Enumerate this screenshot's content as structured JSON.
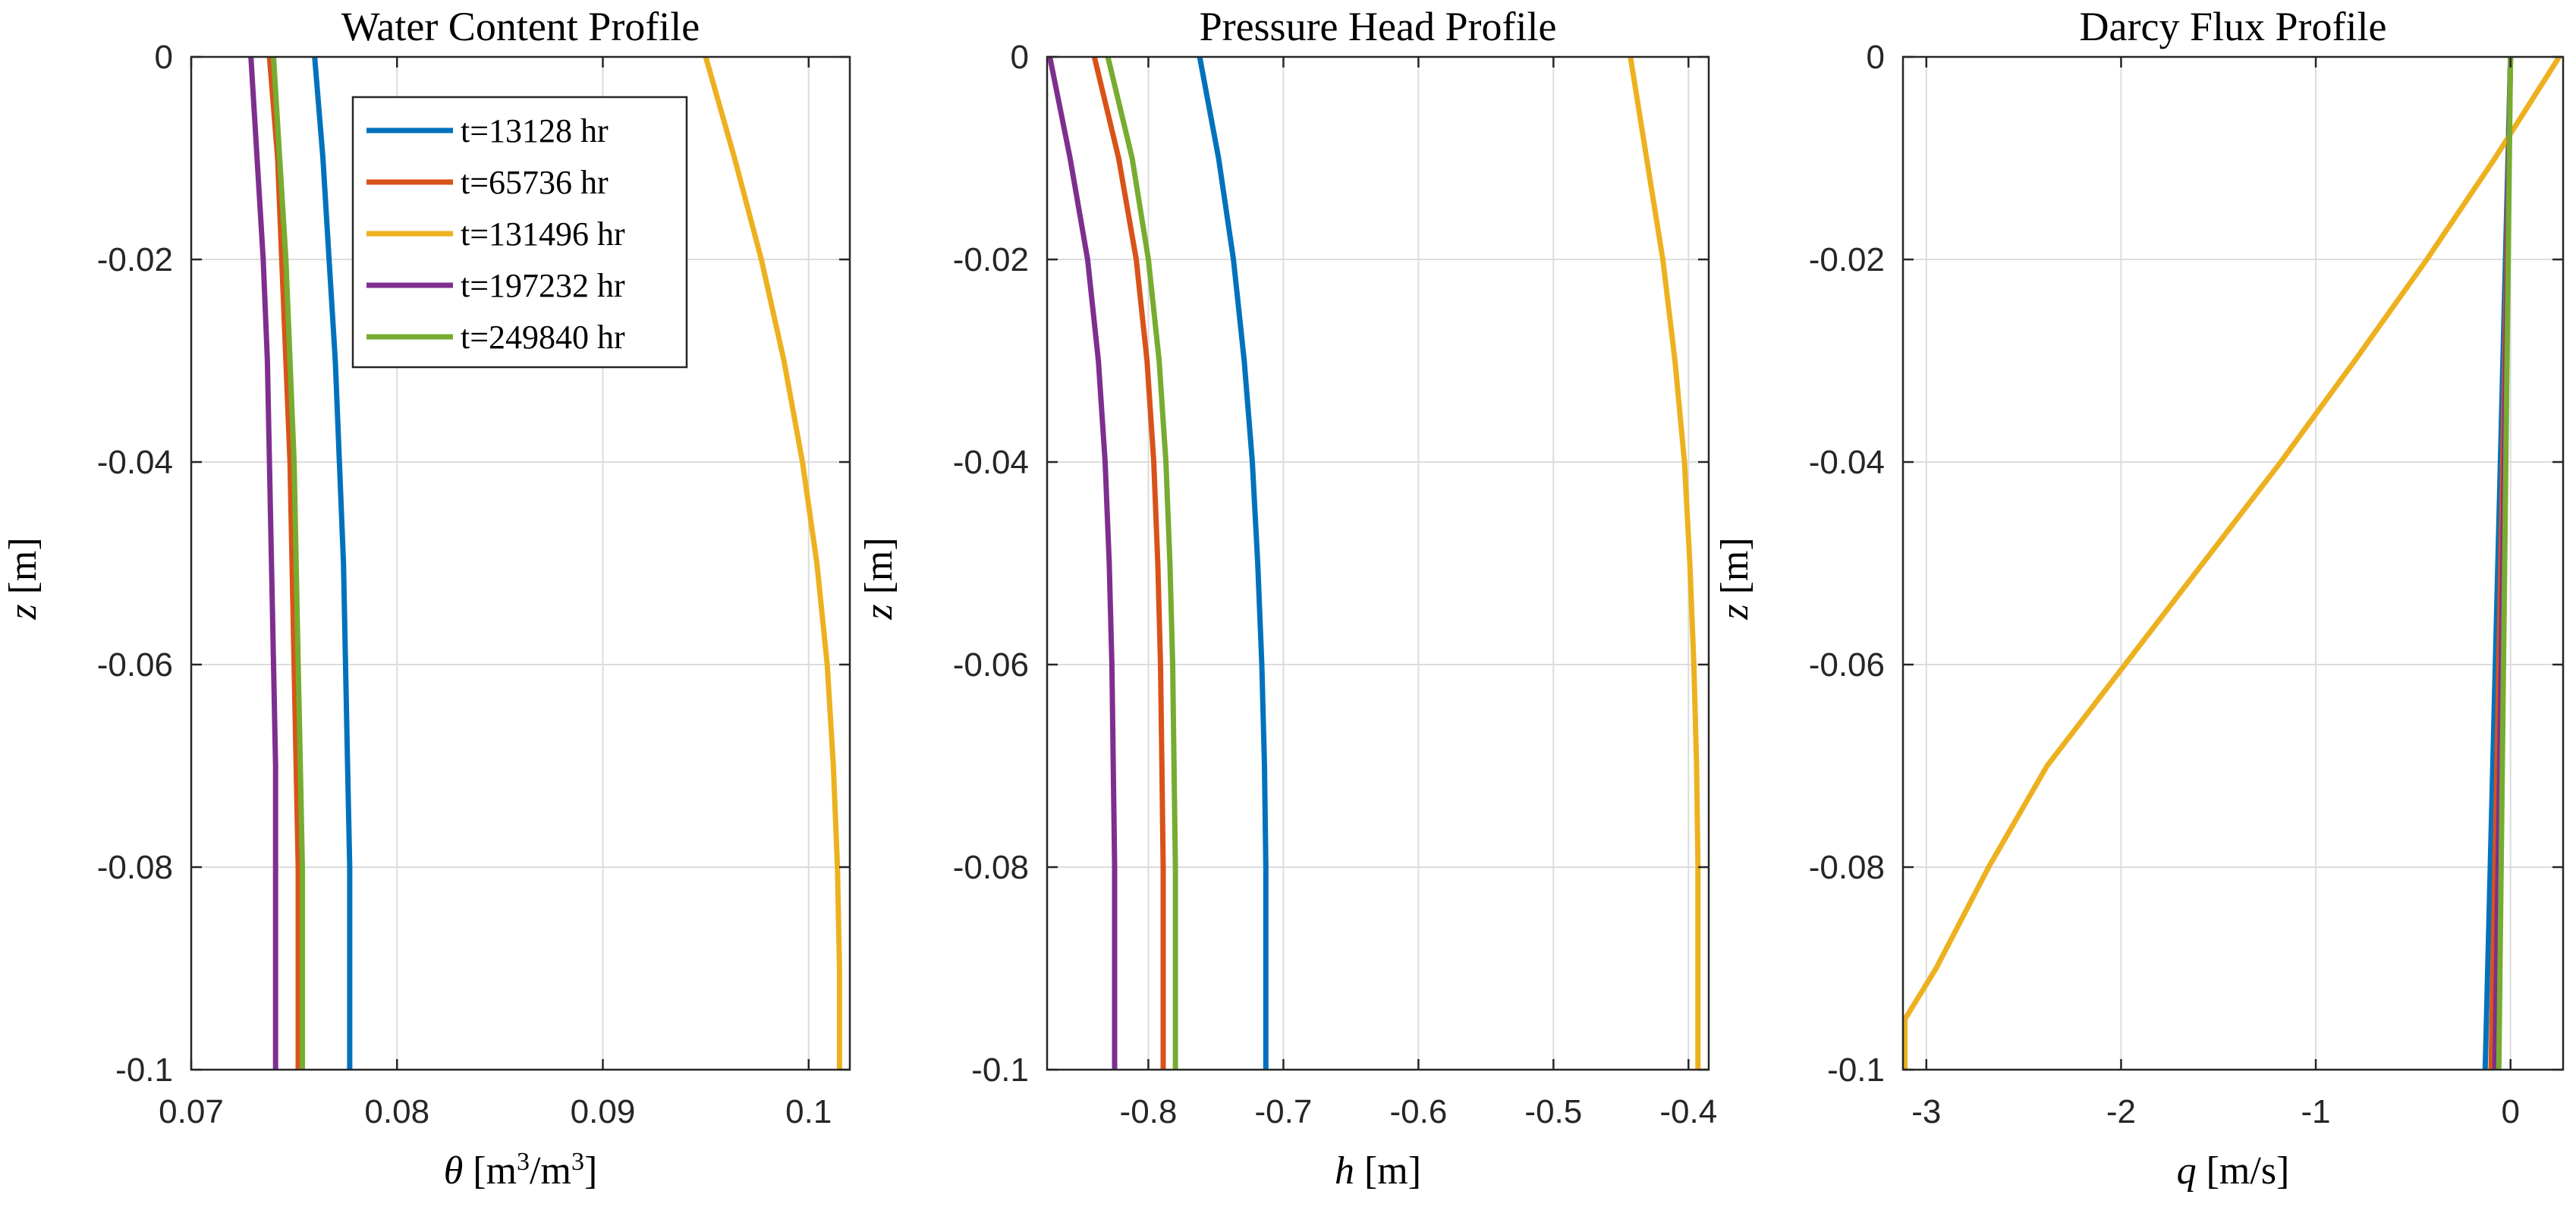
{
  "chart_data": [
    {
      "type": "line",
      "title": "Water Content Profile",
      "xlabel_symbol": "θ",
      "xlabel_units": "[m",
      "xlabel_units_sup1": "3",
      "xlabel_units_mid": "/m",
      "xlabel_units_sup2": "3",
      "xlabel_units_end": "]",
      "ylabel_symbol": "z",
      "ylabel_units": "[m]",
      "xlim": [
        0.07,
        0.102
      ],
      "ylim": [
        -0.1,
        0
      ],
      "xticks": [
        0.07,
        0.08,
        0.09,
        0.1
      ],
      "xtick_labels": [
        "0.07",
        "0.08",
        "0.09",
        "0.1"
      ],
      "yticks": [
        0,
        -0.02,
        -0.04,
        -0.06,
        -0.08,
        -0.1
      ],
      "ytick_labels": [
        "0",
        "-0.02",
        "-0.04",
        "-0.06",
        "-0.08",
        "-0.1"
      ],
      "grid": true,
      "legend_position": "top-center",
      "series": [
        {
          "name": "t=13128 hr",
          "color": "#0072BD",
          "z": [
            0,
            -0.01,
            -0.02,
            -0.03,
            -0.04,
            -0.05,
            -0.06,
            -0.07,
            -0.08,
            -0.09,
            -0.1
          ],
          "values": [
            0.076,
            0.0764,
            0.0767,
            0.077,
            0.0772,
            0.0774,
            0.0775,
            0.0776,
            0.0777,
            0.0777,
            0.0777
          ]
        },
        {
          "name": "t=65736 hr",
          "color": "#D95319",
          "z": [
            0,
            -0.01,
            -0.02,
            -0.03,
            -0.04,
            -0.05,
            -0.06,
            -0.07,
            -0.08,
            -0.09,
            -0.1
          ],
          "values": [
            0.0738,
            0.0742,
            0.0744,
            0.0746,
            0.0748,
            0.0749,
            0.075,
            0.0751,
            0.0752,
            0.0752,
            0.0752
          ]
        },
        {
          "name": "t=131496 hr",
          "color": "#EDB120",
          "z": [
            0,
            -0.01,
            -0.02,
            -0.03,
            -0.04,
            -0.05,
            -0.06,
            -0.07,
            -0.08,
            -0.09,
            -0.1
          ],
          "values": [
            0.095,
            0.0964,
            0.0977,
            0.0988,
            0.0997,
            0.1004,
            0.1009,
            0.1012,
            0.1014,
            0.1015,
            0.1015
          ]
        },
        {
          "name": "t=197232 hr",
          "color": "#7E2F8E",
          "z": [
            0,
            -0.01,
            -0.02,
            -0.03,
            -0.04,
            -0.05,
            -0.06,
            -0.07,
            -0.08,
            -0.09,
            -0.1
          ],
          "values": [
            0.0729,
            0.0732,
            0.0735,
            0.0737,
            0.0738,
            0.0739,
            0.074,
            0.0741,
            0.0741,
            0.0741,
            0.0741
          ]
        },
        {
          "name": "t=249840 hr",
          "color": "#77AC30",
          "z": [
            0,
            -0.01,
            -0.02,
            -0.03,
            -0.04,
            -0.05,
            -0.06,
            -0.07,
            -0.08,
            -0.09,
            -0.1
          ],
          "values": [
            0.074,
            0.0743,
            0.0746,
            0.0748,
            0.075,
            0.0751,
            0.0752,
            0.0753,
            0.0754,
            0.0754,
            0.0754
          ]
        }
      ]
    },
    {
      "type": "line",
      "title": "Pressure Head Profile",
      "xlabel_symbol": "h",
      "xlabel_units": "[m]",
      "ylabel_symbol": "z",
      "ylabel_units": "[m]",
      "xlim": [
        -0.875,
        -0.385
      ],
      "ylim": [
        -0.1,
        0
      ],
      "xticks": [
        -0.8,
        -0.7,
        -0.6,
        -0.5,
        -0.4
      ],
      "xtick_labels": [
        "-0.8",
        "-0.7",
        "-0.6",
        "-0.5",
        "-0.4"
      ],
      "yticks": [
        0,
        -0.02,
        -0.04,
        -0.06,
        -0.08,
        -0.1
      ],
      "ytick_labels": [
        "0",
        "-0.02",
        "-0.04",
        "-0.06",
        "-0.08",
        "-0.1"
      ],
      "grid": true,
      "series": [
        {
          "name": "t=13128 hr",
          "color": "#0072BD",
          "z": [
            0,
            -0.01,
            -0.02,
            -0.03,
            -0.04,
            -0.05,
            -0.06,
            -0.07,
            -0.08,
            -0.09,
            -0.1
          ],
          "values": [
            -0.762,
            -0.748,
            -0.737,
            -0.729,
            -0.723,
            -0.719,
            -0.716,
            -0.714,
            -0.713,
            -0.713,
            -0.713
          ]
        },
        {
          "name": "t=65736 hr",
          "color": "#D95319",
          "z": [
            0,
            -0.01,
            -0.02,
            -0.03,
            -0.04,
            -0.05,
            -0.06,
            -0.07,
            -0.08,
            -0.09,
            -0.1
          ],
          "values": [
            -0.84,
            -0.822,
            -0.809,
            -0.801,
            -0.796,
            -0.793,
            -0.791,
            -0.79,
            -0.789,
            -0.789,
            -0.789
          ]
        },
        {
          "name": "t=131496 hr",
          "color": "#EDB120",
          "z": [
            0,
            -0.01,
            -0.02,
            -0.03,
            -0.04,
            -0.05,
            -0.06,
            -0.07,
            -0.08,
            -0.09,
            -0.1
          ],
          "values": [
            -0.443,
            -0.431,
            -0.419,
            -0.41,
            -0.403,
            -0.399,
            -0.396,
            -0.394,
            -0.393,
            -0.393,
            -0.393
          ]
        },
        {
          "name": "t=197232 hr",
          "color": "#7E2F8E",
          "z": [
            0,
            -0.01,
            -0.02,
            -0.03,
            -0.04,
            -0.05,
            -0.06,
            -0.07,
            -0.08,
            -0.09,
            -0.1
          ],
          "values": [
            -0.873,
            -0.858,
            -0.845,
            -0.837,
            -0.832,
            -0.829,
            -0.827,
            -0.826,
            -0.825,
            -0.825,
            -0.825
          ]
        },
        {
          "name": "t=249840 hr",
          "color": "#77AC30",
          "z": [
            0,
            -0.01,
            -0.02,
            -0.03,
            -0.04,
            -0.05,
            -0.06,
            -0.07,
            -0.08,
            -0.09,
            -0.1
          ],
          "values": [
            -0.83,
            -0.812,
            -0.8,
            -0.792,
            -0.787,
            -0.784,
            -0.782,
            -0.781,
            -0.78,
            -0.78,
            -0.78
          ]
        }
      ]
    },
    {
      "type": "line",
      "title": "Darcy Flux Profile",
      "xlabel_symbol": "q",
      "xlabel_units": "[m/s]",
      "ylabel_symbol": "z",
      "ylabel_units": "[m]",
      "xlim": [
        -3.12,
        0.27
      ],
      "ylim": [
        -0.1,
        0
      ],
      "xticks": [
        -3,
        -2,
        -1,
        0
      ],
      "xtick_labels": [
        "-3",
        "-2",
        "-1",
        "0"
      ],
      "yticks": [
        0,
        -0.02,
        -0.04,
        -0.06,
        -0.08,
        -0.1
      ],
      "ytick_labels": [
        "0",
        "-0.02",
        "-0.04",
        "-0.06",
        "-0.08",
        "-0.1"
      ],
      "grid": true,
      "series": [
        {
          "name": "t=13128 hr",
          "color": "#0072BD",
          "z": [
            0,
            -0.1
          ],
          "values": [
            0.0,
            -0.13
          ]
        },
        {
          "name": "t=65736 hr",
          "color": "#D95319",
          "z": [
            0,
            -0.1
          ],
          "values": [
            0.0,
            -0.1
          ]
        },
        {
          "name": "t=131496 hr",
          "color": "#EDB120",
          "z": [
            0,
            -0.01,
            -0.02,
            -0.03,
            -0.04,
            -0.05,
            -0.06,
            -0.07,
            -0.08,
            -0.09,
            -0.095,
            -0.1
          ],
          "values": [
            0.25,
            -0.08,
            -0.43,
            -0.8,
            -1.18,
            -1.58,
            -1.98,
            -2.38,
            -2.68,
            -2.95,
            -3.11,
            -3.11
          ]
        },
        {
          "name": "t=197232 hr",
          "color": "#7E2F8E",
          "z": [
            0,
            -0.1
          ],
          "values": [
            0.0,
            -0.08
          ]
        },
        {
          "name": "t=249840 hr",
          "color": "#77AC30",
          "z": [
            0,
            -0.1
          ],
          "values": [
            0.0,
            -0.06
          ]
        }
      ]
    }
  ]
}
